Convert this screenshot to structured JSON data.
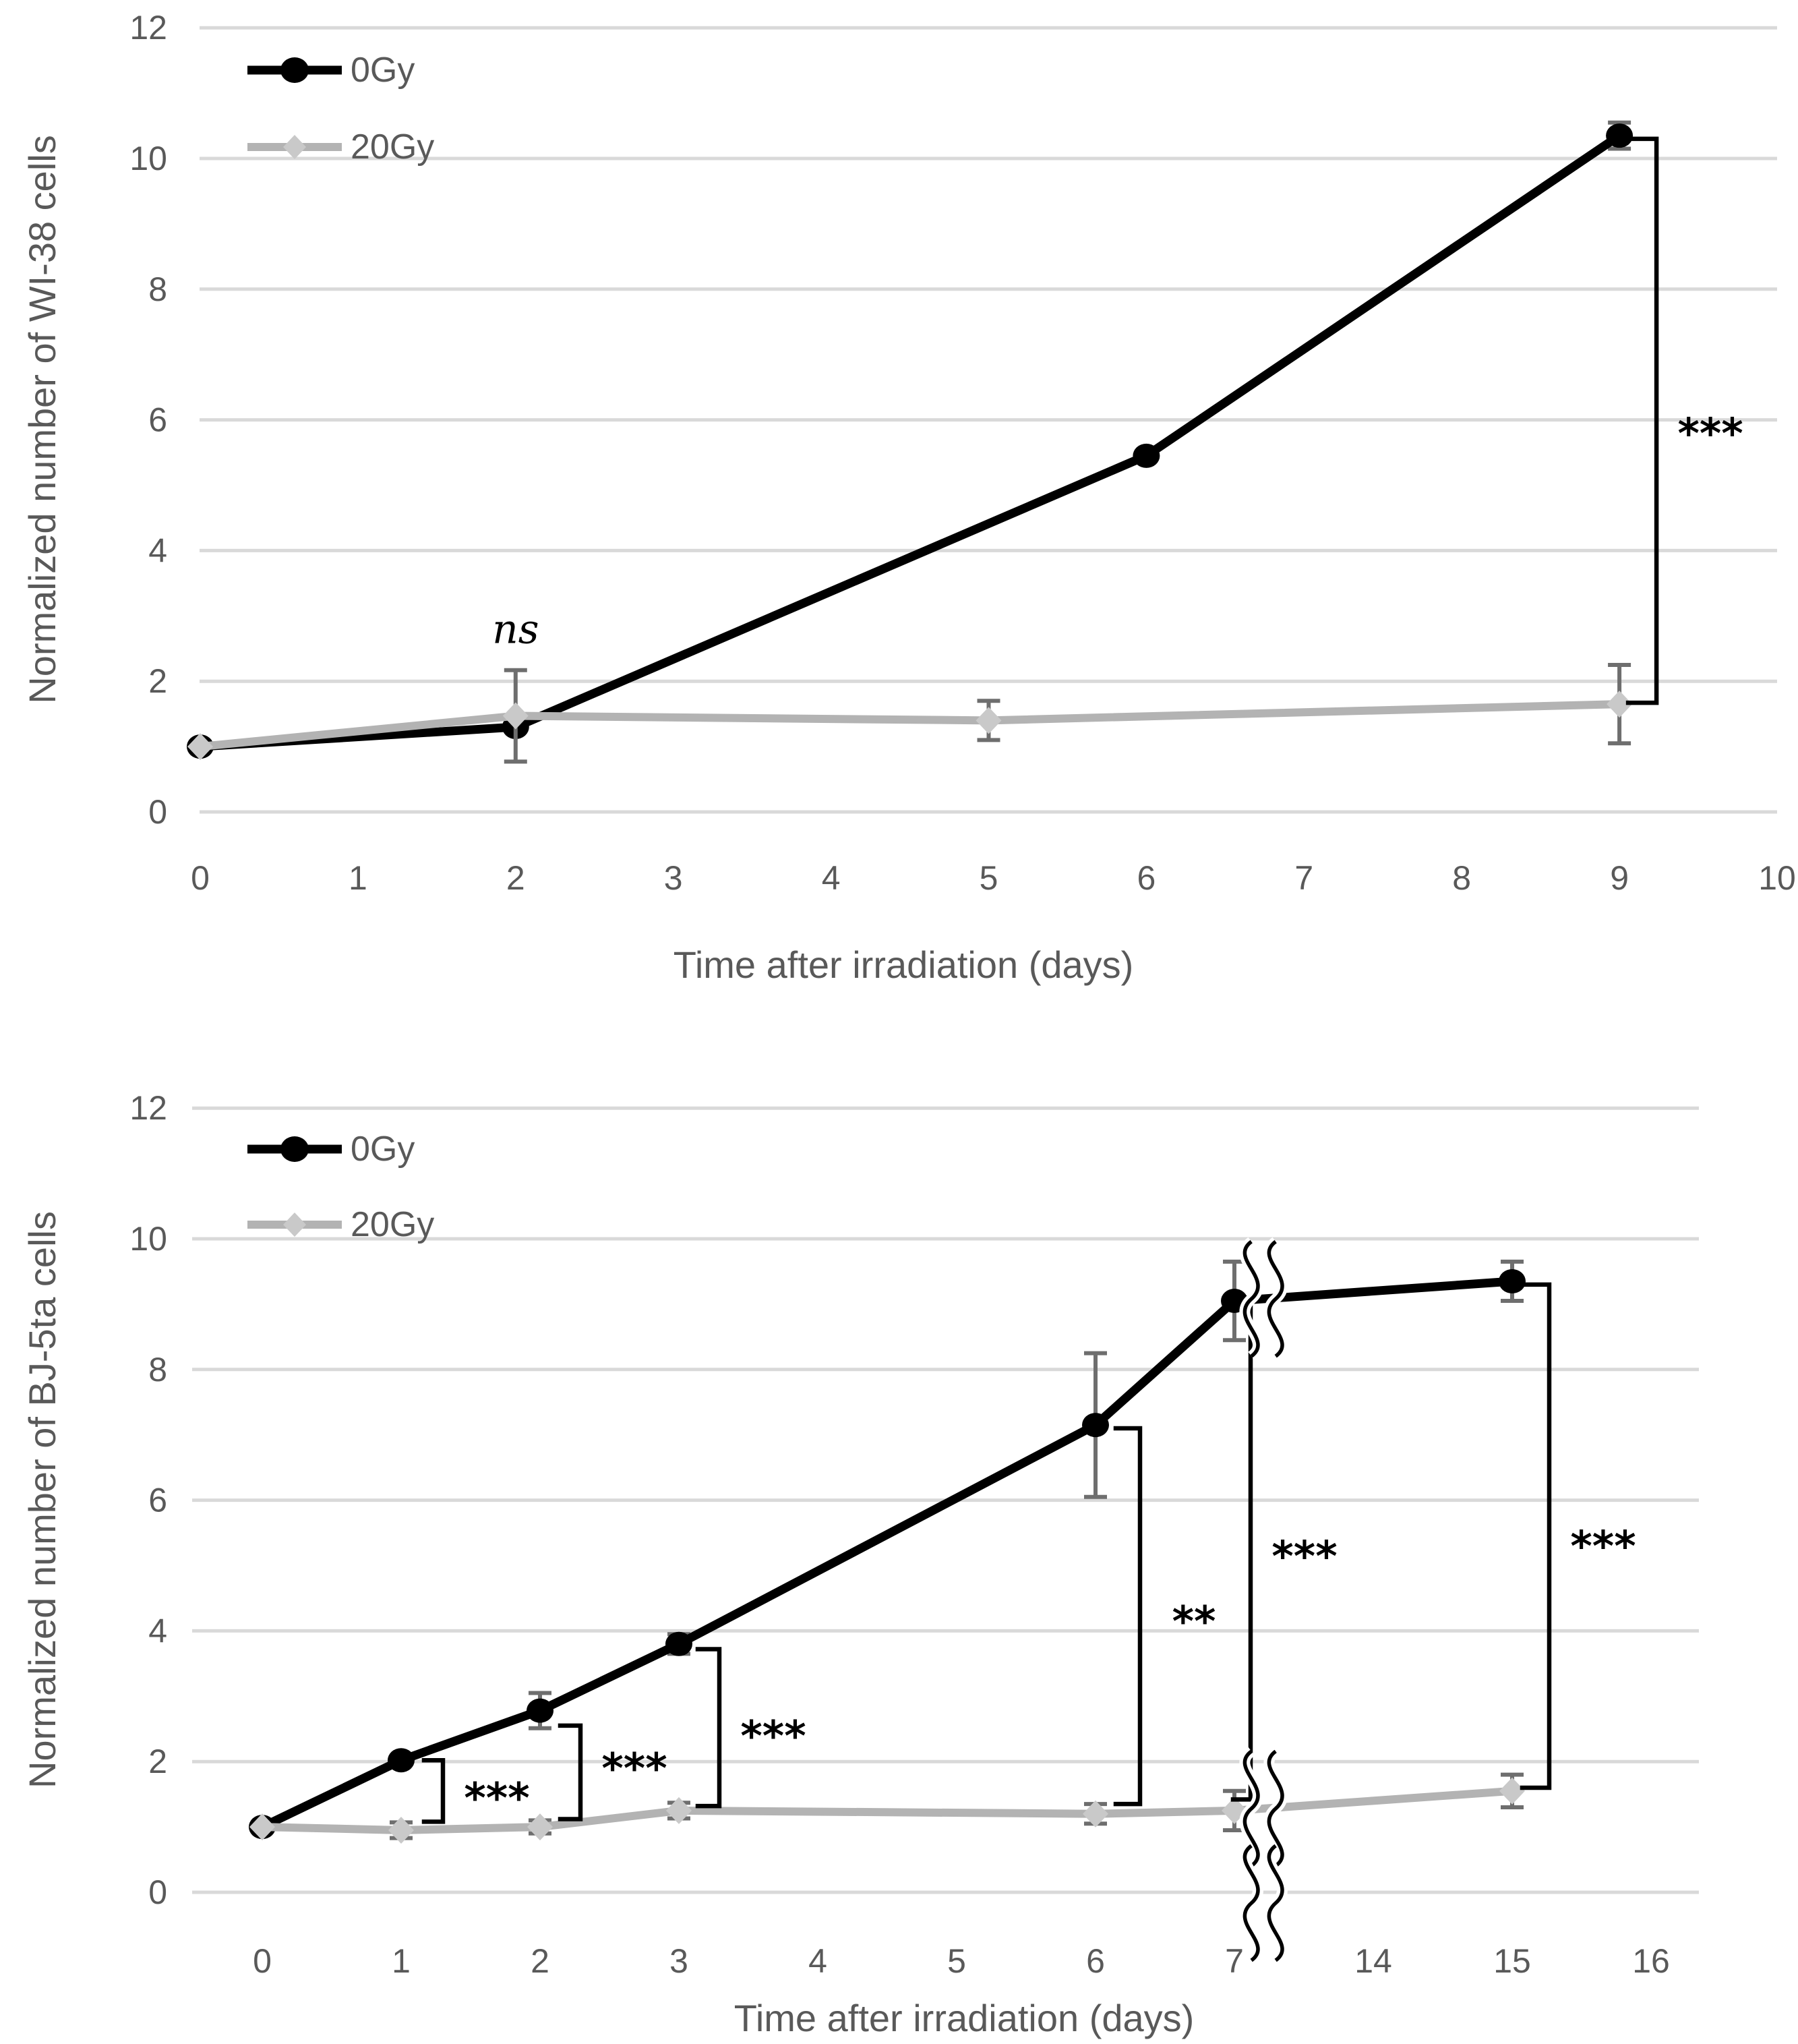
{
  "page": {
    "background": "#ffffff"
  },
  "chart_data": [
    {
      "type": "line",
      "title": "",
      "ylabel": "Normalized number of WI-38 cells",
      "xlabel": "Time after irradiation (days)",
      "ylim": [
        0,
        12
      ],
      "y_ticks": [
        0,
        2,
        4,
        6,
        8,
        10,
        12
      ],
      "x_tick_labels": [
        "0",
        "1",
        "2",
        "3",
        "4",
        "5",
        "6",
        "7",
        "8",
        "9",
        "10"
      ],
      "grid": true,
      "legend_position": "top-left-inside",
      "error_color": "#6e6e6e",
      "series": [
        {
          "name": "0Gy",
          "color": "#000000",
          "marker": "circle",
          "marker_color": "#000000",
          "points": [
            {
              "day": 0,
              "i": 0,
              "y": 1.0
            },
            {
              "day": 2,
              "i": 2,
              "y": 1.3
            },
            {
              "day": 6,
              "i": 6,
              "y": 5.45
            },
            {
              "day": 9,
              "i": 9,
              "y": 10.35,
              "err": 0.2
            }
          ]
        },
        {
          "name": "20Gy",
          "color": "#b3b3b3",
          "marker": "diamond",
          "marker_color": "#c9c9c9",
          "points": [
            {
              "day": 0,
              "i": 0,
              "y": 1.0
            },
            {
              "day": 2,
              "i": 2,
              "y": 1.47,
              "err": 0.7
            },
            {
              "day": 5,
              "i": 5,
              "y": 1.4,
              "err": 0.3
            },
            {
              "day": 9,
              "i": 9,
              "y": 1.65,
              "err": 0.6
            }
          ]
        }
      ],
      "annotations": {
        "texts": [
          {
            "text": "ns",
            "i": 2,
            "value": 2.75
          }
        ],
        "brackets": [
          {
            "i": 9,
            "top": 10.3,
            "bottom": 1.67,
            "label": "***",
            "label_value": 5.9,
            "dx": 55,
            "arm": 42
          }
        ]
      }
    },
    {
      "type": "line",
      "title": "",
      "ylabel": "Normalized number of BJ-5ta cells",
      "xlabel": "Time after irradiation (days)",
      "ylim": [
        0,
        12
      ],
      "y_ticks": [
        0,
        2,
        4,
        6,
        8,
        10,
        12
      ],
      "x_tick_labels": [
        "0",
        "1",
        "2",
        "3",
        "4",
        "5",
        "6",
        "7",
        "14",
        "15",
        "16"
      ],
      "axis_break": {
        "after_label": "7",
        "before_label": "14"
      },
      "grid": true,
      "legend_position": "top-left-inside",
      "error_color": "#6e6e6e",
      "series": [
        {
          "name": "0Gy",
          "color": "#000000",
          "marker": "circle",
          "marker_color": "#000000",
          "points": [
            {
              "day": 0,
              "i": 0,
              "y": 1.0
            },
            {
              "day": 1,
              "i": 1,
              "y": 2.02
            },
            {
              "day": 2,
              "i": 2,
              "y": 2.78,
              "err": 0.27
            },
            {
              "day": 3,
              "i": 3,
              "y": 3.8,
              "err": 0.15
            },
            {
              "day": 6,
              "i": 6,
              "y": 7.15,
              "err": 1.1
            },
            {
              "day": 7,
              "i": 7,
              "y": 9.05,
              "err": 0.6
            },
            {
              "day": 15,
              "i": 9,
              "y": 9.35,
              "err": 0.3
            }
          ]
        },
        {
          "name": "20Gy",
          "color": "#b3b3b3",
          "marker": "diamond",
          "marker_color": "#c9c9c9",
          "points": [
            {
              "day": 0,
              "i": 0,
              "y": 1.0
            },
            {
              "day": 1,
              "i": 1,
              "y": 0.95,
              "err": 0.12
            },
            {
              "day": 2,
              "i": 2,
              "y": 1.0,
              "err": 0.1
            },
            {
              "day": 3,
              "i": 3,
              "y": 1.25,
              "err": 0.12
            },
            {
              "day": 6,
              "i": 6,
              "y": 1.2,
              "err": 0.15
            },
            {
              "day": 7,
              "i": 7,
              "y": 1.25,
              "err": 0.3
            },
            {
              "day": 15,
              "i": 9,
              "y": 1.55,
              "err": 0.25
            }
          ]
        }
      ],
      "annotations": {
        "texts": [],
        "brackets": [
          {
            "i": 1,
            "top": 2.02,
            "bottom": 1.08,
            "label": "***",
            "label_value": 1.55,
            "dx": 62,
            "arm": 28
          },
          {
            "i": 2,
            "top": 2.55,
            "bottom": 1.12,
            "label": "***",
            "label_value": 2.0,
            "dx": 60,
            "arm": 30
          },
          {
            "i": 3,
            "top": 3.72,
            "bottom": 1.32,
            "label": "***",
            "label_value": 2.5,
            "dx": 60,
            "arm": 32
          },
          {
            "i": 6,
            "top": 7.1,
            "bottom": 1.35,
            "label": "**",
            "label_value": 4.25,
            "dx": 66,
            "arm": 36
          },
          {
            "i": 7,
            "top": 9.0,
            "bottom": 1.42,
            "label": "***",
            "label_value": 5.25,
            "dx": 24,
            "arm": 26
          },
          {
            "i": 9,
            "top": 9.3,
            "bottom": 1.6,
            "label": "***",
            "label_value": 5.4,
            "dx": 55,
            "arm": 40
          }
        ]
      }
    }
  ]
}
